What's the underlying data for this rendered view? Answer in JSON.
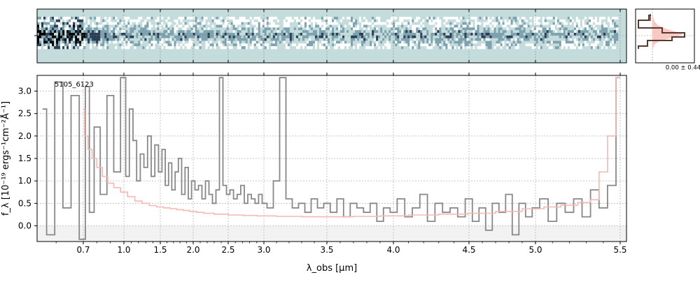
{
  "chart_data": [
    {
      "type": "heatmap",
      "panel": "2d-spectrum",
      "colormap": [
        "#ffffff",
        "#c5dcdc",
        "#7ea3b0",
        "#2c3e55",
        "#000000"
      ],
      "background_color": "#c5dcdc",
      "grid": true
    },
    {
      "type": "line",
      "panel": "spatial-profile",
      "profile_center_label": "0.00 ± 0.44",
      "line_color": "#5a3a2e",
      "fill_color": "#f6c9c4",
      "grid": true
    },
    {
      "type": "line",
      "panel": "1d-spectrum",
      "object_label": "5105_6123",
      "xlabel": "λ_obs [μm]",
      "ylabel": "f_λ [10⁻¹⁹ ergs⁻¹cm⁻²Å⁻¹]",
      "x_scale": "reciprocal-like",
      "xlim": [
        0.53,
        5.52
      ],
      "ylim": [
        -0.35,
        3.35
      ],
      "x_ticks": [
        0.7,
        1.0,
        1.5,
        2.0,
        2.5,
        3.0,
        3.5,
        4.0,
        4.5,
        5.0,
        5.5
      ],
      "x_tick_labels": [
        "0.7",
        "1.0",
        "1.5",
        "2.0",
        "2.5",
        "3.0",
        "3.5",
        "4.0",
        "4.5",
        "5.0",
        "5.5"
      ],
      "y_ticks": [
        0.0,
        0.5,
        1.0,
        1.5,
        2.0,
        2.5,
        3.0
      ],
      "y_tick_labels": [
        "0.0",
        "0.5",
        "1.0",
        "1.5",
        "2.0",
        "2.5",
        "3.0"
      ],
      "grid": true,
      "series": [
        {
          "color": "#888888",
          "x": [
            0.55,
            0.58,
            0.61,
            0.64,
            0.67,
            0.7,
            0.73,
            0.76,
            0.8,
            0.85,
            0.9,
            0.95,
            1.0,
            1.05,
            1.1,
            1.15,
            1.2,
            1.25,
            1.3,
            1.35,
            1.4,
            1.45,
            1.5,
            1.55,
            1.6,
            1.65,
            1.7,
            1.75,
            1.8,
            1.85,
            1.9,
            1.95,
            2.0,
            2.05,
            2.1,
            2.15,
            2.2,
            2.25,
            2.3,
            2.35,
            2.4,
            2.45,
            2.5,
            2.55,
            2.6,
            2.65,
            2.7,
            2.75,
            2.8,
            2.85,
            2.9,
            2.95,
            3.0,
            3.05,
            3.1,
            3.15,
            3.2,
            3.25,
            3.3,
            3.35,
            3.4,
            3.45,
            3.5,
            3.55,
            3.6,
            3.65,
            3.7,
            3.75,
            3.8,
            3.85,
            3.9,
            3.95,
            4.0,
            4.05,
            4.1,
            4.15,
            4.2,
            4.25,
            4.3,
            4.35,
            4.4,
            4.45,
            4.5,
            4.55,
            4.6,
            4.65,
            4.7,
            4.75,
            4.8,
            4.85,
            4.9,
            4.95,
            5.0,
            5.05,
            5.1,
            5.15,
            5.2,
            5.25,
            5.3,
            5.35,
            5.4,
            5.45,
            5.5
          ],
          "y": [
            2.6,
            -0.2,
            3.2,
            0.4,
            2.9,
            -0.3,
            3.1,
            0.3,
            2.2,
            0.7,
            2.9,
            1.2,
            3.3,
            1.1,
            2.6,
            1.9,
            1.0,
            1.6,
            1.3,
            2.0,
            1.1,
            1.8,
            1.2,
            1.7,
            0.9,
            1.4,
            0.8,
            1.2,
            1.5,
            0.7,
            1.3,
            0.6,
            1.0,
            0.8,
            0.9,
            0.6,
            1.0,
            0.7,
            0.5,
            0.8,
            3.3,
            0.9,
            0.7,
            0.8,
            0.6,
            0.7,
            0.9,
            0.5,
            0.7,
            0.6,
            0.5,
            0.7,
            0.5,
            0.4,
            1.0,
            3.3,
            0.6,
            0.4,
            0.5,
            0.3,
            0.6,
            0.4,
            0.5,
            0.3,
            0.6,
            0.2,
            0.5,
            0.4,
            0.3,
            0.5,
            0.1,
            0.4,
            0.3,
            0.6,
            0.2,
            0.4,
            0.7,
            0.1,
            0.5,
            0.3,
            0.4,
            0.2,
            0.6,
            0.1,
            0.4,
            -0.1,
            0.5,
            0.3,
            0.7,
            -0.2,
            0.5,
            0.2,
            0.4,
            0.6,
            0.1,
            0.5,
            0.3,
            0.6,
            0.2,
            0.8,
            0.4,
            0.9,
            3.3
          ]
        },
        {
          "color": "#f6b8b3",
          "x": [
            0.7,
            0.72,
            0.75,
            0.78,
            0.82,
            0.86,
            0.9,
            0.95,
            1.0,
            1.1,
            1.2,
            1.3,
            1.4,
            1.5,
            1.6,
            1.7,
            1.8,
            1.9,
            2.0,
            2.1,
            2.2,
            2.4,
            2.6,
            2.8,
            3.0,
            3.2,
            3.4,
            3.6,
            3.8,
            4.0,
            4.2,
            4.4,
            4.6,
            4.8,
            5.0,
            5.1,
            5.2,
            5.3,
            5.35,
            5.4,
            5.45,
            5.5
          ],
          "y": [
            2.6,
            2.0,
            1.7,
            1.5,
            1.3,
            1.1,
            0.95,
            0.85,
            0.75,
            0.65,
            0.55,
            0.5,
            0.45,
            0.42,
            0.4,
            0.38,
            0.36,
            0.34,
            0.32,
            0.3,
            0.28,
            0.26,
            0.24,
            0.23,
            0.22,
            0.21,
            0.2,
            0.2,
            0.21,
            0.22,
            0.24,
            0.26,
            0.28,
            0.32,
            0.38,
            0.42,
            0.46,
            0.52,
            0.58,
            1.2,
            2.0,
            3.3
          ]
        }
      ]
    }
  ]
}
